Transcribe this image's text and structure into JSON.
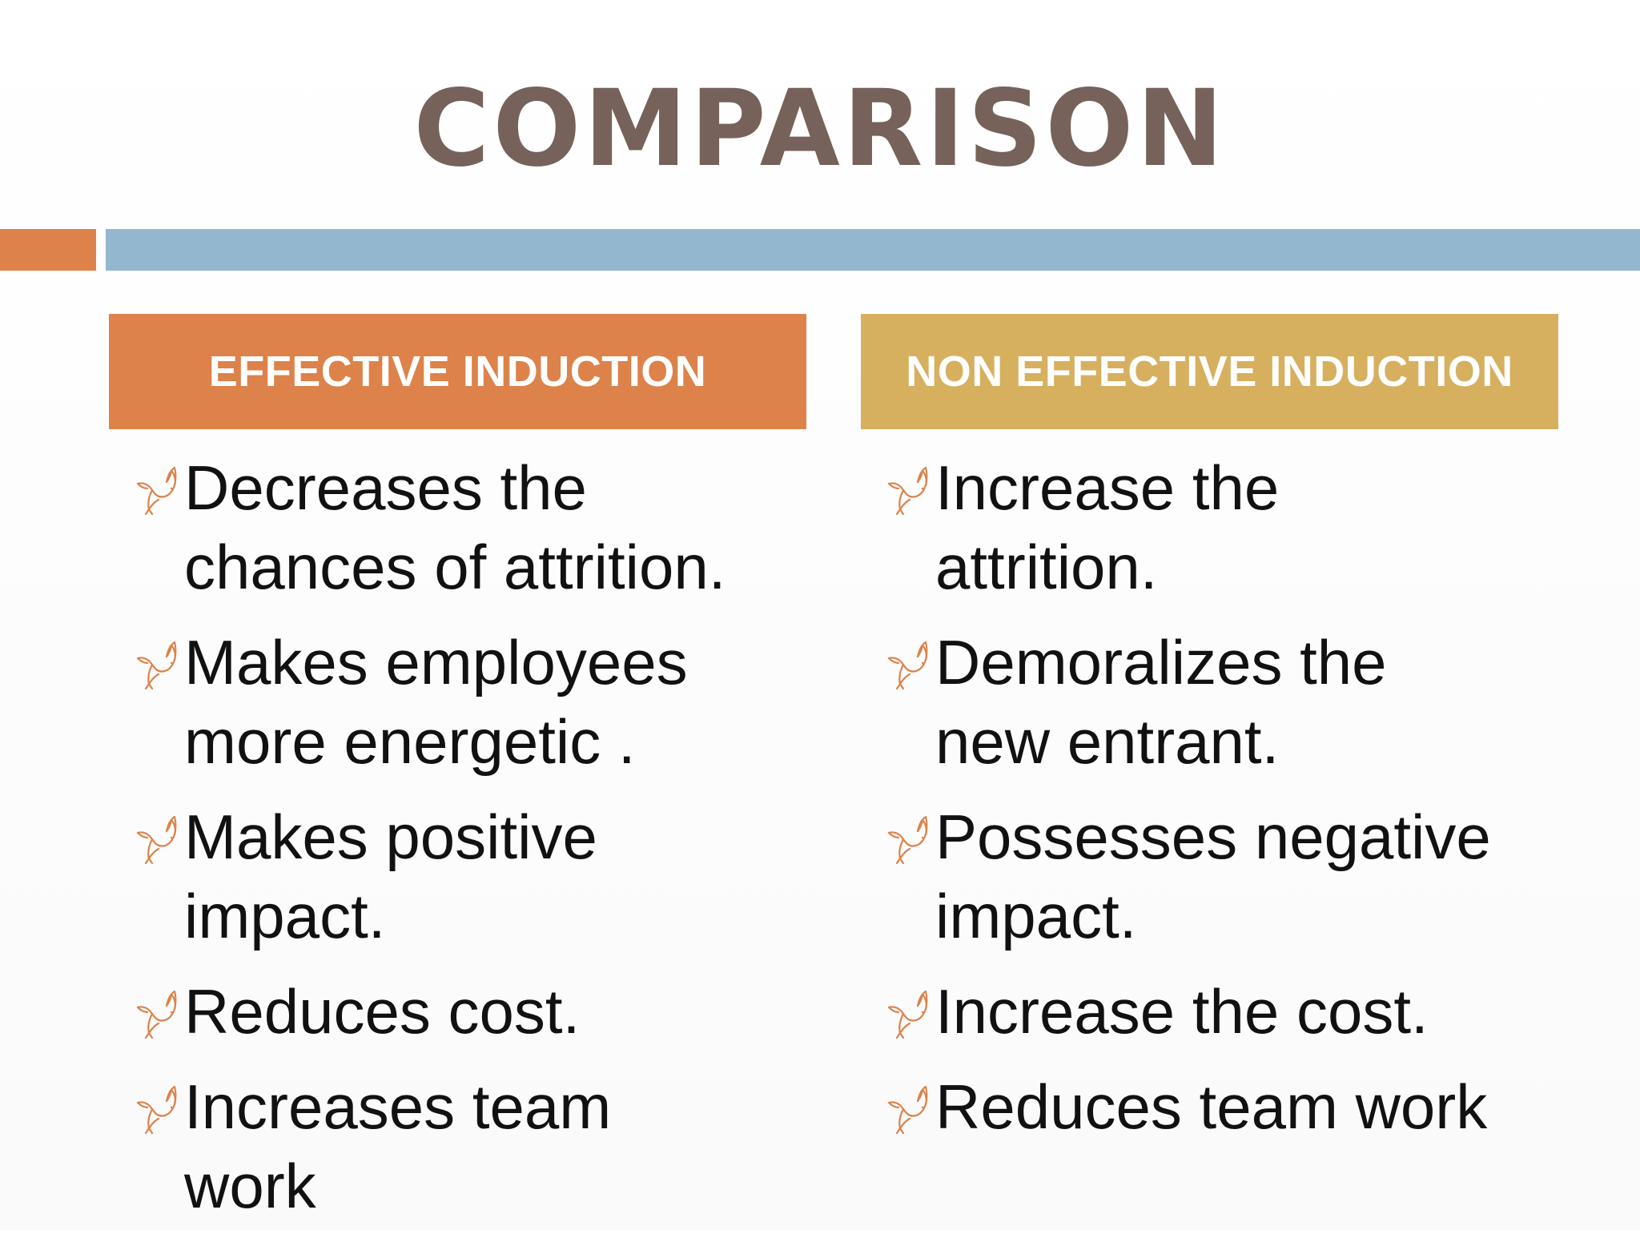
{
  "slide": {
    "title": "COMPARISON",
    "colors": {
      "title": "#76625a",
      "accent_orange": "#dc824a",
      "accent_blue": "#93b7ce",
      "accent_gold": "#d6b05f",
      "bullet": "#dc824a"
    },
    "bullet_icon": "dove-icon"
  },
  "columns": [
    {
      "header": "EFFECTIVE INDUCTION",
      "items": [
        "Decreases the chances of attrition.",
        "Makes employees more energetic .",
        "Makes positive impact.",
        "Reduces cost.",
        "Increases team work"
      ]
    },
    {
      "header": "NON EFFECTIVE INDUCTION",
      "items": [
        "Increase the attrition.",
        "Demoralizes the new entrant.",
        " Possesses negative impact.",
        "Increase the cost.",
        "Reduces team work"
      ]
    }
  ]
}
